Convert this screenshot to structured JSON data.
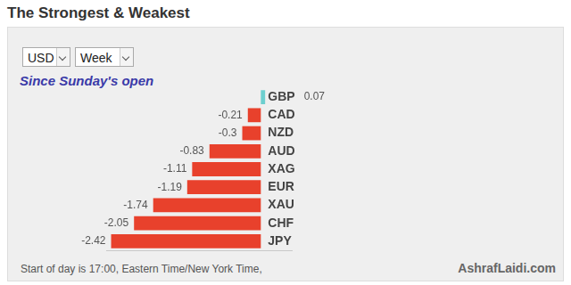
{
  "chart_data": {
    "type": "bar",
    "title": "The Strongest & Weakest",
    "subtitle": "Since Sunday's open",
    "orientation": "horizontal",
    "categories": [
      "GBP",
      "CAD",
      "NZD",
      "AUD",
      "XAG",
      "EUR",
      "XAU",
      "CHF",
      "JPY"
    ],
    "values": [
      0.07,
      -0.21,
      -0.3,
      -0.83,
      -1.11,
      -1.19,
      -1.74,
      -2.05,
      -2.42
    ],
    "colors": [
      "#6ccfcf",
      "#e8412c",
      "#e8412c",
      "#e8412c",
      "#e8412c",
      "#e8412c",
      "#e8412c",
      "#e8412c",
      "#e8412c"
    ],
    "xlim": [
      -2.5,
      0.5
    ],
    "data_labels": true,
    "tick_labels": "y",
    "grid": false
  },
  "controls": {
    "currency": "USD",
    "period": "Week"
  },
  "footer": {
    "note": "Start of day is 17:00, Eastern Time/New York Time,",
    "source": "AshrafLaidi.com"
  }
}
